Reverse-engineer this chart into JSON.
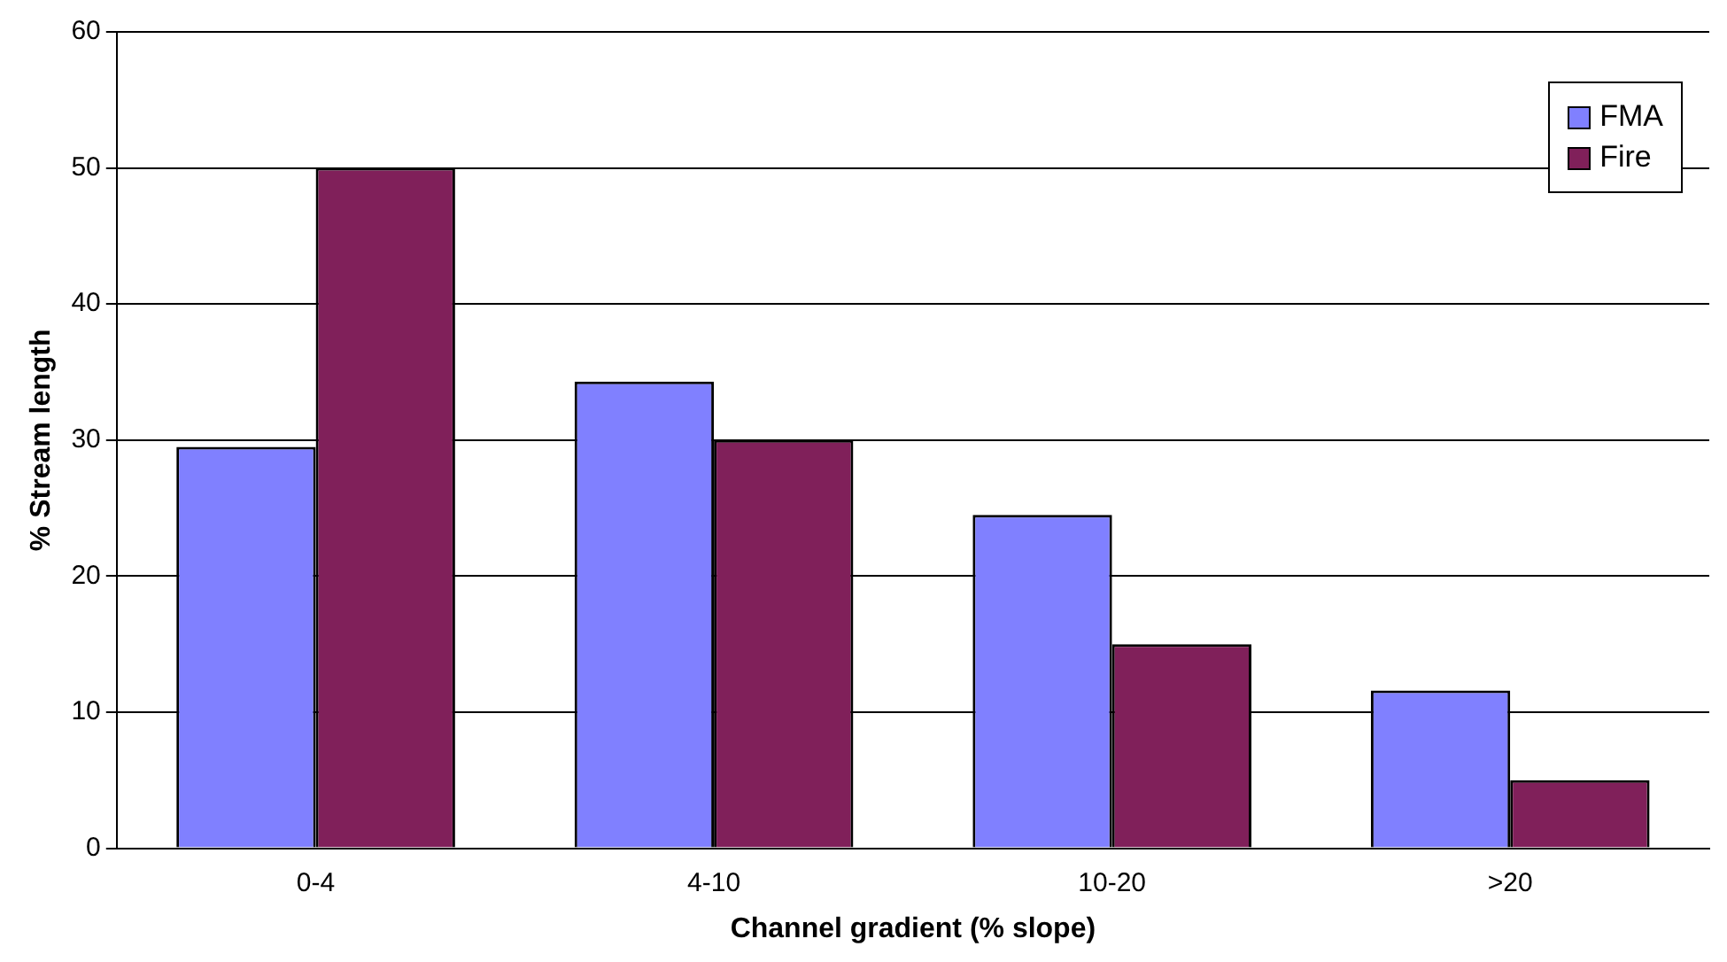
{
  "chart_data": {
    "type": "bar",
    "xlabel": "Channel gradient (% slope)",
    "ylabel": "% Stream length",
    "categories": [
      "0-4",
      "4-10",
      "10-20",
      ">20"
    ],
    "series": [
      {
        "name": "FMA",
        "color": "#8080ff",
        "values": [
          29.5,
          34.3,
          24.5,
          11.6
        ]
      },
      {
        "name": "Fire",
        "color": "#80205a",
        "values": [
          50,
          30,
          15,
          5
        ]
      }
    ],
    "ylim": [
      0,
      60
    ],
    "yticks": [
      0,
      10,
      20,
      30,
      40,
      50,
      60
    ],
    "grid": "y",
    "legend": "top right"
  }
}
